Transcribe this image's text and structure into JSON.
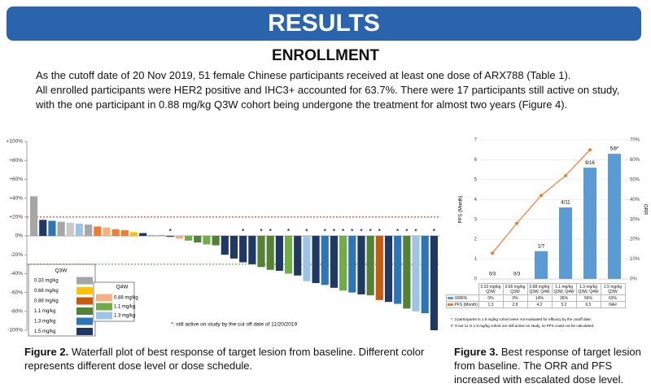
{
  "header": {
    "title": "RESULTS"
  },
  "section": {
    "title": "ENROLLMENT",
    "paragraphs": [
      "As the cutoff date of 20 Nov 2019, 51 female Chinese participants received at least one dose of ARX788 (Table 1).",
      "All enrolled participants were HER2 positive and IHC3+ accounted for 63.7%.  There were 17 participants still active on study, with the one participant in 0.88 mg/kg Q3W cohort being undergone the treatment for almost two years (Figure 4)."
    ]
  },
  "captions": [
    {
      "label": "Figure 2.",
      "text": "Waterfall plot of best response of target lesion from baseline. Different color represents different dose level or dose schedule."
    },
    {
      "label": "Figure 3.",
      "text": "Best response of target lesion from baseline. The ORR and PFS increased with escalated dose level."
    }
  ],
  "chart_data": [
    {
      "type": "waterfall",
      "values": [
        42,
        17,
        16,
        15,
        14,
        13,
        12,
        10,
        9,
        7,
        6,
        4,
        3,
        1,
        1,
        -1,
        -3,
        -5,
        -7,
        -9,
        -10,
        -20,
        -24,
        -28,
        -30,
        -33,
        -36,
        -37,
        -40,
        -42,
        -48,
        -50,
        -52,
        -55,
        -58,
        -60,
        -62,
        -63,
        -68,
        -70,
        -72,
        -77,
        -80,
        -82,
        -100
      ],
      "colors": [
        "#a6a6a6",
        "#1f3864",
        "#2e75b6",
        "#a6a6a6",
        "#c9c9c9",
        "#9dc3e6",
        "#a6a6a6",
        "#ed7d31",
        "#f4b183",
        "#ed7d31",
        "#ed7d31",
        "#ffc000",
        "#1f3864",
        "#a6a6a6",
        "#a6a6a6",
        "#1f3864",
        "#f4b183",
        "#70ad47",
        "#548235",
        "#70ad47",
        "#548235",
        "#1f3864",
        "#1f3864",
        "#1f3864",
        "#1f3864",
        "#548235",
        "#548235",
        "#1f3864",
        "#70ad47",
        "#1f3864",
        "#9dc3e6",
        "#1f3864",
        "#2e75b6",
        "#1f3864",
        "#70ad47",
        "#2e75b6",
        "#1f3864",
        "#548235",
        "#c55a11",
        "#1f3864",
        "#2e75b6",
        "#548235",
        "#9dc3e6",
        "#2e75b6",
        "#1f3864"
      ],
      "markers": [
        null,
        null,
        null,
        null,
        null,
        null,
        null,
        null,
        null,
        null,
        null,
        null,
        null,
        null,
        null,
        "*",
        null,
        null,
        null,
        null,
        null,
        null,
        null,
        "*",
        null,
        "*",
        "*",
        null,
        "*",
        null,
        "*",
        null,
        "*",
        "*",
        "*",
        "*",
        "*",
        "*",
        "*",
        null,
        "*",
        "*",
        "*",
        null,
        "*"
      ],
      "ylim": [
        -100,
        100
      ],
      "yticks": [
        {
          "value": 100,
          "label": "+100%"
        },
        {
          "value": 80,
          "label": "+80%"
        },
        {
          "value": 60,
          "label": "+60%"
        },
        {
          "value": 40,
          "label": "+40%"
        },
        {
          "value": 20,
          "label": "+20%"
        },
        {
          "value": 0,
          "label": "0%"
        },
        {
          "value": -20,
          "label": "-20%"
        },
        {
          "value": -40,
          "label": "-40%"
        },
        {
          "value": -60,
          "label": "-60%"
        },
        {
          "value": -80,
          "label": "-80%"
        },
        {
          "value": -100,
          "label": "-100%"
        }
      ],
      "ref_lines": [
        {
          "value": 20,
          "color": "#e0322e"
        },
        {
          "value": -30,
          "color": "#3cb043"
        }
      ],
      "legend": [
        {
          "title": "Q3W",
          "items": [
            {
              "name": "0.33 mg/kg",
              "color": "#a6a6a6"
            },
            {
              "name": "0.66 mg/kg",
              "color": "#ffc000"
            },
            {
              "name": "0.88 mg/kg",
              "color": "#c55a11"
            },
            {
              "name": "1.1 mg/kg",
              "color": "#548235"
            },
            {
              "name": "1.3 mg/kg",
              "color": "#2e75b6"
            },
            {
              "name": "1.5 mg/kg",
              "color": "#1f3864"
            }
          ]
        },
        {
          "title": "Q4W",
          "items": [
            {
              "name": "0.88 mg/kg",
              "color": "#f4b183"
            },
            {
              "name": "1.1 mg/kg",
              "color": "#70ad47"
            },
            {
              "name": "1.3 mg/kg",
              "color": "#9dc3e6"
            }
          ]
        }
      ],
      "footnote": "*: still active on study by the cut off date of 11/20/2019"
    },
    {
      "type": "bar_line",
      "categories": [
        "0.33 mg/kg Q3W",
        "0.66 mg/kg Q3W",
        "0.88 mg/kg Q3W, Q4W",
        "1.1 mg/kg Q3W, Q4W",
        "1.3 mg/kg Q3W, Q4W",
        "1.5 mg/kg Q3W"
      ],
      "series": [
        {
          "name": "ORR%",
          "type": "bar",
          "axis": "y2",
          "color": "#5b9bd5",
          "values": [
            0,
            0,
            14,
            36,
            56,
            63
          ],
          "value_labels": [
            "0%",
            "0%",
            "14%",
            "36%",
            "56%",
            "63%"
          ]
        },
        {
          "name": "PFS (Month)",
          "type": "line",
          "color": "#ed7d31",
          "values": [
            1.3,
            2.8,
            4.2,
            5.2,
            6.5,
            null
          ],
          "value_labels": [
            "1.3",
            "2.8",
            "4.2",
            "5.2",
            "6.5",
            "NA#"
          ]
        }
      ],
      "bar_annotations": [
        "0/3",
        "0/3",
        "1/7",
        "4/11",
        "9/16",
        "5/8*"
      ],
      "ylabel": "PFS (Month)",
      "y2label": "ORR",
      "ylim": [
        0,
        7
      ],
      "yticks": [
        0,
        1,
        2,
        3,
        4,
        5,
        6,
        7
      ],
      "y2lim": [
        0,
        70
      ],
      "y2ticks": [
        {
          "value": 0,
          "label": "0%"
        },
        {
          "value": 10,
          "label": "10%"
        },
        {
          "value": 20,
          "label": "20%"
        },
        {
          "value": 30,
          "label": "30%"
        },
        {
          "value": 40,
          "label": "40%"
        },
        {
          "value": 50,
          "label": "50%"
        },
        {
          "value": 60,
          "label": "60%"
        },
        {
          "value": 70,
          "label": "70%"
        }
      ],
      "footnotes": [
        "*: 3 participants in 1.5 mg/kg cohort were not evaluated for efficacy by the cutoff date.",
        "#: 9 out 11 in 1.5 mg/kg cohort are still active on study, so PFS could not be calculated."
      ]
    }
  ]
}
